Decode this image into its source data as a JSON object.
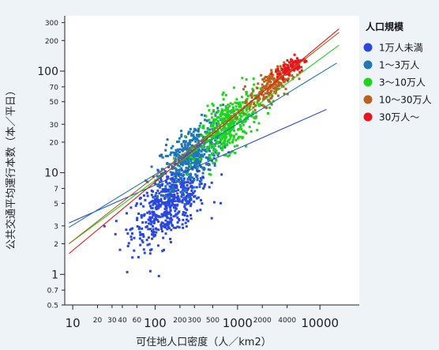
{
  "chart_data": {
    "type": "scatter",
    "title": "",
    "xlabel": "可住地人口密度（人／km2）",
    "ylabel": "公共交通平均運行本数（本／平日）",
    "x_scale": "log",
    "y_scale": "log",
    "xlim": [
      8,
      30000
    ],
    "ylim": [
      0.5,
      350
    ],
    "x_ticks": [
      {
        "value": 10,
        "label": "10",
        "major": true
      },
      {
        "value": 20,
        "label": "20",
        "major": false
      },
      {
        "value": 30,
        "label": "30",
        "major": false
      },
      {
        "value": 40,
        "label": "40",
        "major": false
      },
      {
        "value": 60,
        "label": "60",
        "major": false
      },
      {
        "value": 100,
        "label": "100",
        "major": true
      },
      {
        "value": 200,
        "label": "200",
        "major": false
      },
      {
        "value": 300,
        "label": "300",
        "major": false
      },
      {
        "value": 500,
        "label": "500",
        "major": false
      },
      {
        "value": 1000,
        "label": "1000",
        "major": true
      },
      {
        "value": 2000,
        "label": "2000",
        "major": false
      },
      {
        "value": 4000,
        "label": "4000",
        "major": false
      },
      {
        "value": 10000,
        "label": "10000",
        "major": true
      }
    ],
    "y_ticks": [
      {
        "value": 0.5,
        "label": "0.5",
        "major": false
      },
      {
        "value": 0.7,
        "label": "0.7",
        "major": false
      },
      {
        "value": 1,
        "label": "1",
        "major": true
      },
      {
        "value": 2,
        "label": "2",
        "major": false
      },
      {
        "value": 3,
        "label": "3",
        "major": false
      },
      {
        "value": 5,
        "label": "5",
        "major": false
      },
      {
        "value": 7,
        "label": "7",
        "major": false
      },
      {
        "value": 10,
        "label": "10",
        "major": true
      },
      {
        "value": 20,
        "label": "20",
        "major": false
      },
      {
        "value": 30,
        "label": "30",
        "major": false
      },
      {
        "value": 50,
        "label": "50",
        "major": false
      },
      {
        "value": 70,
        "label": "70",
        "major": false
      },
      {
        "value": 100,
        "label": "100",
        "major": true
      },
      {
        "value": 200,
        "label": "200",
        "major": false
      },
      {
        "value": 300,
        "label": "300",
        "major": false
      }
    ],
    "grid": false,
    "legend": {
      "title": "人口規模",
      "position": "top-right"
    },
    "series": [
      {
        "name": "1万人未満",
        "color": "#2a47e0",
        "cluster": {
          "x_center": 150,
          "x_spread": 3.2,
          "y_center": 5,
          "y_spread": 3.0,
          "count": 560,
          "x_range": [
            20,
            1500
          ],
          "y_range": [
            0.7,
            40
          ]
        },
        "trend_line": {
          "x": [
            9,
            12000
          ],
          "y": [
            3.2,
            42
          ]
        }
      },
      {
        "name": "1〜3万人",
        "color": "#1f77b4",
        "cluster": {
          "x_center": 280,
          "x_spread": 2.6,
          "y_center": 15,
          "y_spread": 2.6,
          "count": 480,
          "x_range": [
            30,
            5000
          ],
          "y_range": [
            1.5,
            150
          ]
        },
        "trend_line": {
          "x": [
            9,
            16000
          ],
          "y": [
            2.9,
            120
          ]
        }
      },
      {
        "name": "3〜10万人",
        "color": "#1ed41e",
        "cluster": {
          "x_center": 800,
          "x_spread": 2.5,
          "y_center": 30,
          "y_spread": 2.4,
          "count": 420,
          "x_range": [
            100,
            10000
          ],
          "y_range": [
            3,
            200
          ]
        },
        "trend_line": {
          "x": [
            9,
            17000
          ],
          "y": [
            2.0,
            180
          ]
        }
      },
      {
        "name": "10〜30万人",
        "color": "#b8621b",
        "cluster": {
          "x_center": 2500,
          "x_spread": 1.9,
          "y_center": 70,
          "y_spread": 1.7,
          "count": 200,
          "x_range": [
            300,
            15000
          ],
          "y_range": [
            8,
            250
          ]
        },
        "trend_line": {
          "x": [
            9,
            17000
          ],
          "y": [
            2.0,
            240
          ]
        }
      },
      {
        "name": "30万人〜",
        "color": "#e8151b",
        "cluster": {
          "x_center": 4500,
          "x_spread": 1.6,
          "y_center": 110,
          "y_spread": 1.4,
          "count": 90,
          "x_range": [
            1000,
            15000
          ],
          "y_range": [
            25,
            220
          ]
        },
        "trend_line": {
          "x": [
            9,
            17000
          ],
          "y": [
            1.6,
            260
          ]
        }
      }
    ]
  }
}
